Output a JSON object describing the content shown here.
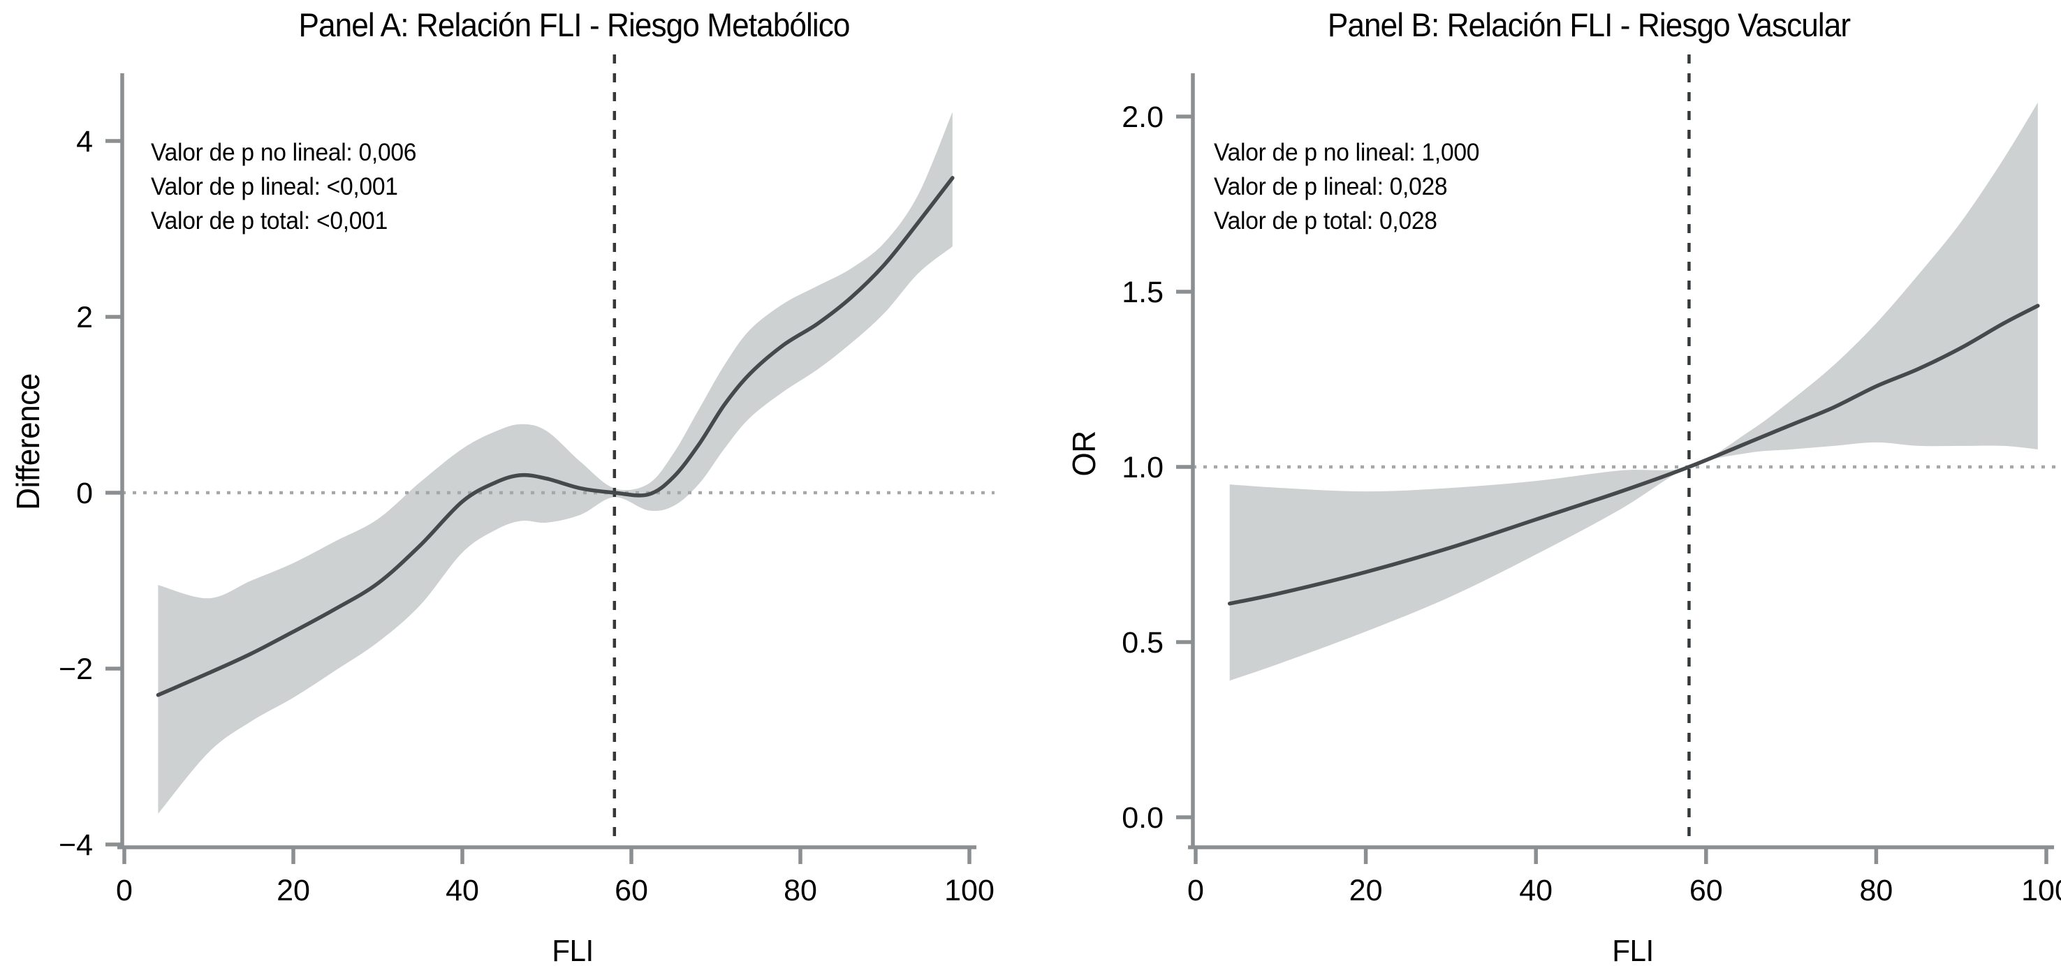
{
  "colors": {
    "background": "#ffffff",
    "band": "#cdd1d1",
    "curve": "#45494b",
    "axis": "#8b8f91",
    "dashed_reference": "#35383a",
    "dotted_reference": "#a4a8a8",
    "text": "#000000"
  },
  "chart_data": [
    {
      "panel": "A",
      "type": "line",
      "title": "Panel A: Relación FLI - Riesgo Metabólico",
      "xlabel": "FLI",
      "ylabel": "Difference",
      "xlim": [
        0,
        103
      ],
      "ylim": [
        -4.3,
        4.7
      ],
      "xticks": [
        0,
        20,
        40,
        60,
        80,
        100
      ],
      "xtick_labels": [
        "0",
        "20",
        "40",
        "60",
        "80",
        "100"
      ],
      "yticks": [
        -4,
        -2,
        0,
        2,
        4
      ],
      "ytick_labels": [
        "−4",
        "−2",
        "0",
        "2",
        "4"
      ],
      "grid": false,
      "legend": false,
      "reference_line_x": 58,
      "reference_line_y": 0,
      "annotations": [
        "Valor de p no lineal: 0,006",
        "Valor de p lineal: <0,001",
        "Valor de p total: <0,001"
      ],
      "x": [
        4,
        10,
        15,
        20,
        25,
        30,
        35,
        40,
        44,
        47,
        50,
        54,
        58,
        62,
        65,
        68,
        71,
        74,
        78,
        82,
        86,
        90,
        94,
        98
      ],
      "series": [
        {
          "name": "spline_estimate",
          "values": [
            -2.3,
            -2.05,
            -1.83,
            -1.58,
            -1.32,
            -1.03,
            -0.6,
            -0.1,
            0.12,
            0.2,
            0.16,
            0.05,
            0.0,
            -0.02,
            0.18,
            0.55,
            1.0,
            1.35,
            1.68,
            1.92,
            2.22,
            2.6,
            3.08,
            3.58
          ]
        },
        {
          "name": "ci_upper",
          "values": [
            -1.05,
            -1.2,
            -1.0,
            -0.8,
            -0.55,
            -0.3,
            0.12,
            0.5,
            0.7,
            0.78,
            0.7,
            0.35,
            0.05,
            0.1,
            0.45,
            0.95,
            1.45,
            1.85,
            2.15,
            2.35,
            2.55,
            2.85,
            3.4,
            4.33
          ]
        },
        {
          "name": "ci_lower",
          "values": [
            -3.65,
            -2.95,
            -2.6,
            -2.33,
            -2.02,
            -1.7,
            -1.28,
            -0.68,
            -0.42,
            -0.32,
            -0.34,
            -0.25,
            -0.05,
            -0.2,
            -0.15,
            0.1,
            0.5,
            0.85,
            1.15,
            1.4,
            1.7,
            2.05,
            2.5,
            2.8
          ]
        }
      ]
    },
    {
      "panel": "B",
      "type": "line",
      "title": "Panel B: Relación FLI - Riesgo Vascular",
      "xlabel": "FLI",
      "ylabel": "OR",
      "xlim": [
        0,
        103
      ],
      "ylim": [
        -0.09,
        2.18
      ],
      "xticks": [
        0,
        20,
        40,
        60,
        80,
        100
      ],
      "xtick_labels": [
        "0",
        "20",
        "40",
        "60",
        "80",
        "100"
      ],
      "yticks": [
        0.0,
        0.5,
        1.0,
        1.5,
        2.0
      ],
      "ytick_labels": [
        "0.0",
        "0.5",
        "1.0",
        "1.5",
        "2.0"
      ],
      "grid": false,
      "legend": false,
      "reference_line_x": 58,
      "reference_line_y": 1.0,
      "annotations": [
        "Valor de p no lineal: 1,000",
        "Valor de p lineal: 0,028",
        "Valor de p total: 0,028"
      ],
      "x": [
        4,
        10,
        20,
        30,
        40,
        50,
        58,
        65,
        70,
        75,
        80,
        85,
        90,
        95,
        99
      ],
      "series": [
        {
          "name": "spline_estimate",
          "values": [
            0.61,
            0.64,
            0.7,
            0.77,
            0.85,
            0.93,
            1.0,
            1.07,
            1.12,
            1.17,
            1.23,
            1.28,
            1.34,
            1.41,
            1.46
          ]
        },
        {
          "name": "ci_upper",
          "values": [
            0.95,
            0.94,
            0.93,
            0.94,
            0.96,
            0.99,
            1.0,
            1.1,
            1.19,
            1.29,
            1.41,
            1.55,
            1.7,
            1.88,
            2.04
          ]
        },
        {
          "name": "ci_lower",
          "values": [
            0.39,
            0.44,
            0.53,
            0.63,
            0.75,
            0.88,
            1.0,
            1.04,
            1.05,
            1.06,
            1.07,
            1.06,
            1.06,
            1.06,
            1.05
          ]
        }
      ]
    }
  ]
}
